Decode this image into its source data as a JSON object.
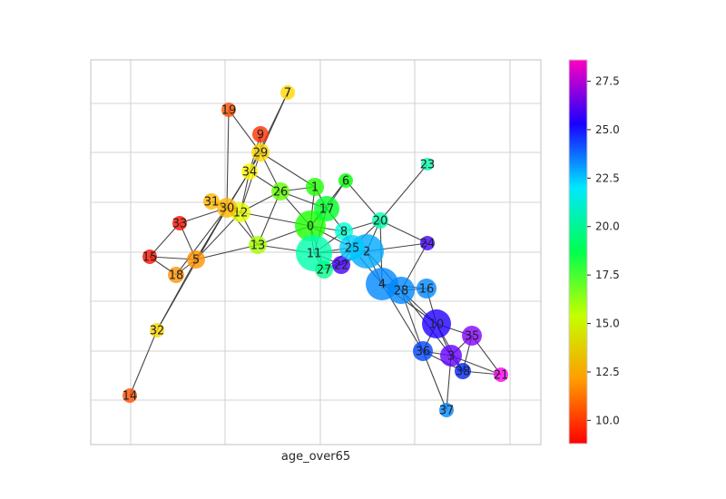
{
  "xlabel": "age_over65",
  "colorbar": {
    "ticks": [
      "10.0",
      "12.5",
      "15.0",
      "17.5",
      "20.0",
      "22.5",
      "25.0",
      "27.5"
    ],
    "tick_values": [
      10.0,
      12.5,
      15.0,
      17.5,
      20.0,
      22.5,
      25.0,
      27.5
    ],
    "range": [
      8.8,
      28.6
    ],
    "colormap": "gist_rainbow"
  },
  "nodes": [
    {
      "id": "0",
      "value": 16.0
    },
    {
      "id": "1",
      "value": 16.0
    },
    {
      "id": "2",
      "value": 21.5
    },
    {
      "id": "3",
      "value": 25.5
    },
    {
      "id": "4",
      "value": 22.0
    },
    {
      "id": "5",
      "value": 11.0
    },
    {
      "id": "6",
      "value": 16.5
    },
    {
      "id": "7",
      "value": 12.0
    },
    {
      "id": "8",
      "value": 19.5
    },
    {
      "id": "9",
      "value": 9.5
    },
    {
      "id": "10",
      "value": 24.5
    },
    {
      "id": "11",
      "value": 19.0
    },
    {
      "id": "12",
      "value": 13.0
    },
    {
      "id": "13",
      "value": 14.0
    },
    {
      "id": "14",
      "value": 10.0
    },
    {
      "id": "15",
      "value": 9.0
    },
    {
      "id": "16",
      "value": 22.0
    },
    {
      "id": "17",
      "value": 17.0
    },
    {
      "id": "18",
      "value": 11.0
    },
    {
      "id": "19",
      "value": 10.0
    },
    {
      "id": "20",
      "value": 19.0
    },
    {
      "id": "21",
      "value": 28.0
    },
    {
      "id": "22",
      "value": 25.0
    },
    {
      "id": "23",
      "value": 19.0
    },
    {
      "id": "24",
      "value": 25.0
    },
    {
      "id": "25",
      "value": 21.0
    },
    {
      "id": "26",
      "value": 15.0
    },
    {
      "id": "27",
      "value": 18.5
    },
    {
      "id": "28",
      "value": 22.0
    },
    {
      "id": "29",
      "value": 12.0
    },
    {
      "id": "30",
      "value": 11.5
    },
    {
      "id": "31",
      "value": 11.5
    },
    {
      "id": "32",
      "value": 12.0
    },
    {
      "id": "33",
      "value": 9.0
    },
    {
      "id": "34",
      "value": 12.5
    },
    {
      "id": "35",
      "value": 26.0
    },
    {
      "id": "36",
      "value": 23.0
    },
    {
      "id": "37",
      "value": 22.0
    },
    {
      "id": "38",
      "value": 23.5
    }
  ],
  "edges": [
    [
      "7",
      "29"
    ],
    [
      "7",
      "34"
    ],
    [
      "19",
      "29"
    ],
    [
      "19",
      "30"
    ],
    [
      "9",
      "29"
    ],
    [
      "9",
      "34"
    ],
    [
      "29",
      "34"
    ],
    [
      "29",
      "26"
    ],
    [
      "29",
      "1"
    ],
    [
      "29",
      "12"
    ],
    [
      "34",
      "12"
    ],
    [
      "34",
      "30"
    ],
    [
      "34",
      "26"
    ],
    [
      "34",
      "5"
    ],
    [
      "31",
      "30"
    ],
    [
      "31",
      "12"
    ],
    [
      "30",
      "12"
    ],
    [
      "30",
      "33"
    ],
    [
      "30",
      "5"
    ],
    [
      "30",
      "18"
    ],
    [
      "30",
      "32"
    ],
    [
      "30",
      "13"
    ],
    [
      "12",
      "26"
    ],
    [
      "12",
      "13"
    ],
    [
      "12",
      "0"
    ],
    [
      "12",
      "5"
    ],
    [
      "33",
      "5"
    ],
    [
      "33",
      "15"
    ],
    [
      "15",
      "5"
    ],
    [
      "15",
      "18"
    ],
    [
      "18",
      "5"
    ],
    [
      "5",
      "13"
    ],
    [
      "5",
      "32"
    ],
    [
      "32",
      "14"
    ],
    [
      "26",
      "1"
    ],
    [
      "26",
      "0"
    ],
    [
      "26",
      "17"
    ],
    [
      "26",
      "13"
    ],
    [
      "1",
      "0"
    ],
    [
      "1",
      "17"
    ],
    [
      "6",
      "17"
    ],
    [
      "6",
      "0"
    ],
    [
      "6",
      "20"
    ],
    [
      "17",
      "0"
    ],
    [
      "17",
      "8"
    ],
    [
      "17",
      "11"
    ],
    [
      "0",
      "11"
    ],
    [
      "0",
      "8"
    ],
    [
      "0",
      "25"
    ],
    [
      "0",
      "27"
    ],
    [
      "0",
      "13"
    ],
    [
      "13",
      "11"
    ],
    [
      "11",
      "27"
    ],
    [
      "11",
      "8"
    ],
    [
      "11",
      "25"
    ],
    [
      "11",
      "22"
    ],
    [
      "11",
      "2"
    ],
    [
      "8",
      "25"
    ],
    [
      "8",
      "20"
    ],
    [
      "27",
      "25"
    ],
    [
      "27",
      "22"
    ],
    [
      "27",
      "2"
    ],
    [
      "25",
      "22"
    ],
    [
      "25",
      "2"
    ],
    [
      "25",
      "20"
    ],
    [
      "25",
      "4"
    ],
    [
      "22",
      "2"
    ],
    [
      "2",
      "20"
    ],
    [
      "2",
      "4"
    ],
    [
      "2",
      "24"
    ],
    [
      "2",
      "28"
    ],
    [
      "20",
      "23"
    ],
    [
      "20",
      "4"
    ],
    [
      "20",
      "24"
    ],
    [
      "4",
      "28"
    ],
    [
      "4",
      "16"
    ],
    [
      "4",
      "10"
    ],
    [
      "4",
      "36"
    ],
    [
      "28",
      "16"
    ],
    [
      "28",
      "24"
    ],
    [
      "28",
      "10"
    ],
    [
      "28",
      "36"
    ],
    [
      "28",
      "3"
    ],
    [
      "16",
      "10"
    ],
    [
      "10",
      "35"
    ],
    [
      "10",
      "3"
    ],
    [
      "10",
      "36"
    ],
    [
      "10",
      "38"
    ],
    [
      "35",
      "3"
    ],
    [
      "35",
      "21"
    ],
    [
      "35",
      "38"
    ],
    [
      "3",
      "36"
    ],
    [
      "3",
      "38"
    ],
    [
      "3",
      "21"
    ],
    [
      "36",
      "37"
    ],
    [
      "36",
      "38"
    ],
    [
      "38",
      "21"
    ],
    [
      "3",
      "37"
    ]
  ]
}
